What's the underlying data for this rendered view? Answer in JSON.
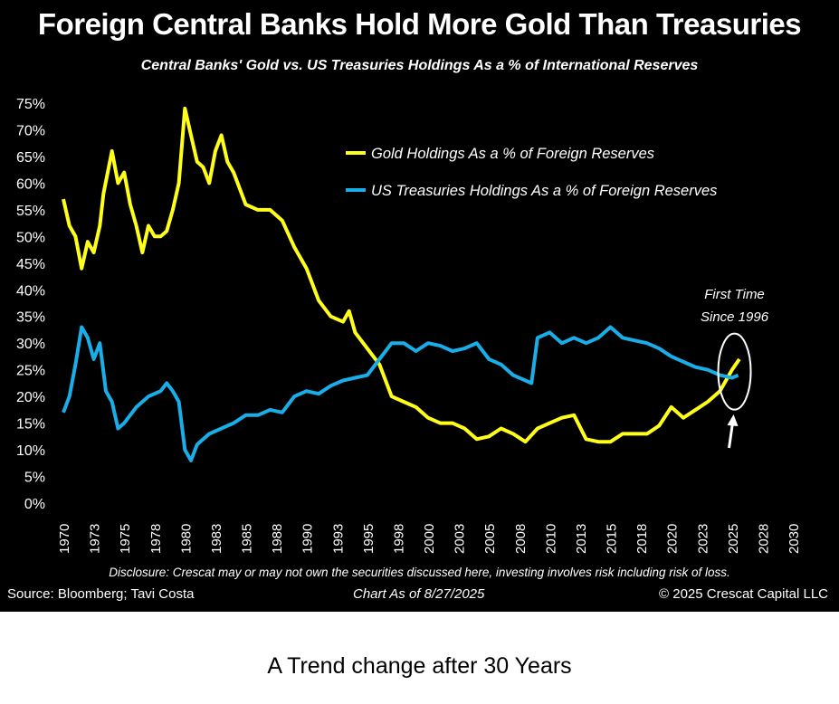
{
  "title": "Foreign Central Banks Hold More Gold Than Treasuries",
  "footer": {
    "disclosure": "Disclosure: Crescat may or may not own the securities discussed here, investing involves risk including risk of loss.",
    "source": "Source: Bloomberg; Tavi Costa",
    "as_of": "Chart As of 8/27/2025",
    "copyright": "© 2025 Crescat Capital LLC"
  },
  "caption": "A Trend change after 30 Years",
  "chart_data": {
    "type": "line",
    "title": "Foreign Central Banks Hold More Gold Than Treasuries",
    "subtitle": "Central Banks' Gold vs. US Treasuries Holdings As a % of International Reserves",
    "xlabel": "",
    "ylabel": "",
    "xlim": [
      1970,
      2030
    ],
    "ylim": [
      0,
      75
    ],
    "grid": false,
    "legend_placement": "top-right",
    "y_ticks": [
      "0%",
      "5%",
      "10%",
      "15%",
      "20%",
      "25%",
      "30%",
      "35%",
      "40%",
      "45%",
      "50%",
      "55%",
      "60%",
      "65%",
      "70%",
      "75%"
    ],
    "x_ticks": [
      "1970",
      "1973",
      "1975",
      "1978",
      "1980",
      "1983",
      "1985",
      "1988",
      "1990",
      "1993",
      "1995",
      "1998",
      "2000",
      "2003",
      "2005",
      "2008",
      "2010",
      "2013",
      "2015",
      "2018",
      "2020",
      "2023",
      "2025",
      "2028",
      "2030"
    ],
    "x_tick_values": [
      1970,
      1972.5,
      1975,
      1977.5,
      1980,
      1982.5,
      1985,
      1987.5,
      1990,
      1992.5,
      1995,
      1997.5,
      2000,
      2002.5,
      2005,
      2007.5,
      2010,
      2012.5,
      2015,
      2017.5,
      2020,
      2022.5,
      2025,
      2027.5,
      2030
    ],
    "annotation": {
      "line1": "First Time",
      "line2": "Since 1996",
      "x": 2025.2,
      "y": 25
    },
    "series": [
      {
        "name": "Gold Holdings As a % of Foreign Reserves",
        "color": "#ffff1a",
        "x": [
          1970,
          1970.5,
          1971,
          1971.5,
          1972,
          1972.5,
          1973,
          1973.3,
          1974,
          1974.5,
          1975,
          1975.5,
          1976,
          1976.5,
          1977,
          1977.5,
          1978,
          1978.5,
          1979,
          1979.5,
          1980,
          1980.5,
          1981,
          1981.5,
          1982,
          1982.5,
          1983,
          1983.5,
          1984,
          1985,
          1986,
          1987,
          1988,
          1989,
          1990,
          1991,
          1992,
          1993,
          1993.5,
          1994,
          1995,
          1996,
          1997,
          1998,
          1999,
          2000,
          2001,
          2002,
          2003,
          2004,
          2005,
          2006,
          2007,
          2008,
          2009,
          2010,
          2011,
          2012,
          2013,
          2014,
          2015,
          2016,
          2017,
          2018,
          2019,
          2020,
          2021,
          2022,
          2023,
          2024,
          2025,
          2025.6
        ],
        "values": [
          57,
          52,
          50,
          44,
          49,
          47,
          52,
          58,
          66,
          60,
          62,
          56,
          52,
          47,
          52,
          50,
          50,
          51,
          55,
          60,
          74,
          69,
          64,
          63,
          60,
          66,
          69,
          64,
          62,
          56,
          55,
          55,
          53,
          48,
          44,
          38,
          35,
          34,
          36,
          32,
          29,
          26,
          20,
          19,
          18,
          16,
          15,
          15,
          14,
          12,
          12.5,
          14,
          13,
          11.5,
          14,
          15,
          16,
          16.5,
          12,
          11.5,
          11.5,
          13,
          13,
          13,
          14.5,
          18,
          16,
          17.5,
          19,
          21,
          25,
          27
        ]
      },
      {
        "name": "US Treasuries Holdings As a % of Foreign Reserves",
        "color": "#1aaee8",
        "x": [
          1970,
          1970.5,
          1971,
          1971.5,
          1972,
          1972.5,
          1973,
          1973.5,
          1974,
          1974.5,
          1975,
          1976,
          1977,
          1978,
          1978.5,
          1979,
          1979.5,
          1980,
          1980.5,
          1981,
          1982,
          1983,
          1984,
          1985,
          1986,
          1987,
          1988,
          1989,
          1990,
          1991,
          1992,
          1993,
          1994,
          1995,
          1996,
          1997,
          1998,
          1999,
          2000,
          2001,
          2002,
          2003,
          2004,
          2005,
          2006,
          2007,
          2008,
          2008.5,
          2009,
          2010,
          2011,
          2012,
          2013,
          2014,
          2015,
          2016,
          2017,
          2018,
          2019,
          2020,
          2021,
          2022,
          2023,
          2024,
          2025,
          2025.5
        ],
        "values": [
          17,
          20,
          26,
          33,
          31,
          27,
          30,
          21,
          19,
          14,
          15,
          18,
          20,
          21,
          22.5,
          21,
          19,
          10,
          8,
          11,
          13,
          14,
          15,
          16.5,
          16.5,
          17.5,
          17,
          20,
          21,
          20.5,
          22,
          23,
          23.5,
          24,
          27,
          30,
          30,
          28.5,
          30,
          29.5,
          28.5,
          29,
          30,
          27,
          26,
          24,
          23,
          22.5,
          31,
          32,
          30,
          31,
          30,
          31,
          33,
          31,
          30.5,
          30,
          29,
          27.5,
          26.5,
          25.5,
          25,
          24,
          23.5,
          24
        ]
      }
    ]
  }
}
